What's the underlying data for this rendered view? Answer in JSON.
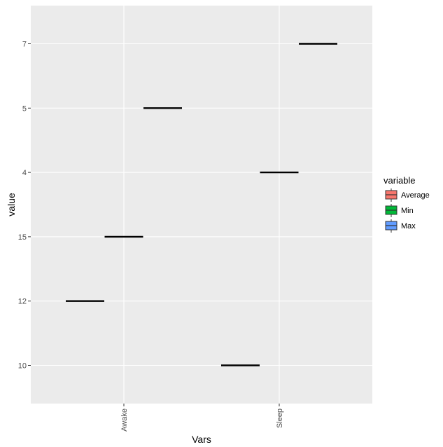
{
  "chart_data": {
    "type": "boxplot",
    "xlabel": "Vars",
    "ylabel": "value",
    "categories": [
      "Awake",
      "Sleep"
    ],
    "y_categories": [
      "10",
      "12",
      "15",
      "4",
      "5",
      "7"
    ],
    "legend": {
      "title": "variable",
      "position": "right",
      "entries": [
        {
          "name": "Average",
          "color": "#F8766D"
        },
        {
          "name": "Min",
          "color": "#00BA38"
        },
        {
          "name": "Max",
          "color": "#619CFF"
        }
      ]
    },
    "grid": true,
    "panel_background": "#EBEBEB",
    "series": [
      {
        "name": "Average",
        "values": [
          "12",
          "10"
        ]
      },
      {
        "name": "Min",
        "values": [
          "15",
          "4"
        ]
      },
      {
        "name": "Max",
        "values": [
          "5",
          "7"
        ]
      }
    ]
  }
}
